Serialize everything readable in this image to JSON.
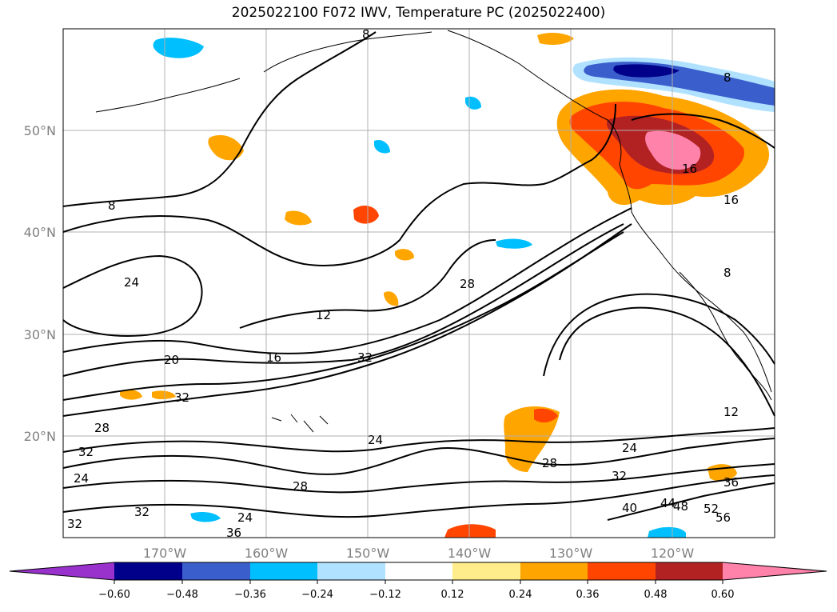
{
  "title": "2025022100 F072 IWV, Temperature PC (2025022400)",
  "lat_labels": [
    "50°N",
    "40°N",
    "30°N",
    "20°N"
  ],
  "lon_labels": [
    "170°W",
    "160°W",
    "150°W",
    "140°W",
    "130°W",
    "120°W"
  ],
  "contour_labels": [
    "8",
    "8",
    "12",
    "12",
    "16",
    "16",
    "20",
    "24",
    "24",
    "24",
    "24",
    "24",
    "28",
    "28",
    "28",
    "28",
    "32",
    "32",
    "32",
    "32",
    "32",
    "32",
    "36",
    "36",
    "40",
    "44",
    "48",
    "52",
    "56",
    "8",
    "16",
    "8"
  ],
  "colorbar": {
    "colors": [
      "#9932cc",
      "#00008b",
      "#3a5fcd",
      "#00bfff",
      "#b0e2ff",
      "#ffffff",
      "#ffec8b",
      "#ffa500",
      "#ff4500",
      "#b22222",
      "#ff82ab"
    ],
    "tick_labels": [
      "−0.60",
      "−0.48",
      "−0.36",
      "−0.24",
      "−0.12",
      "0.12",
      "0.24",
      "0.36",
      "0.48",
      "0.60"
    ]
  }
}
